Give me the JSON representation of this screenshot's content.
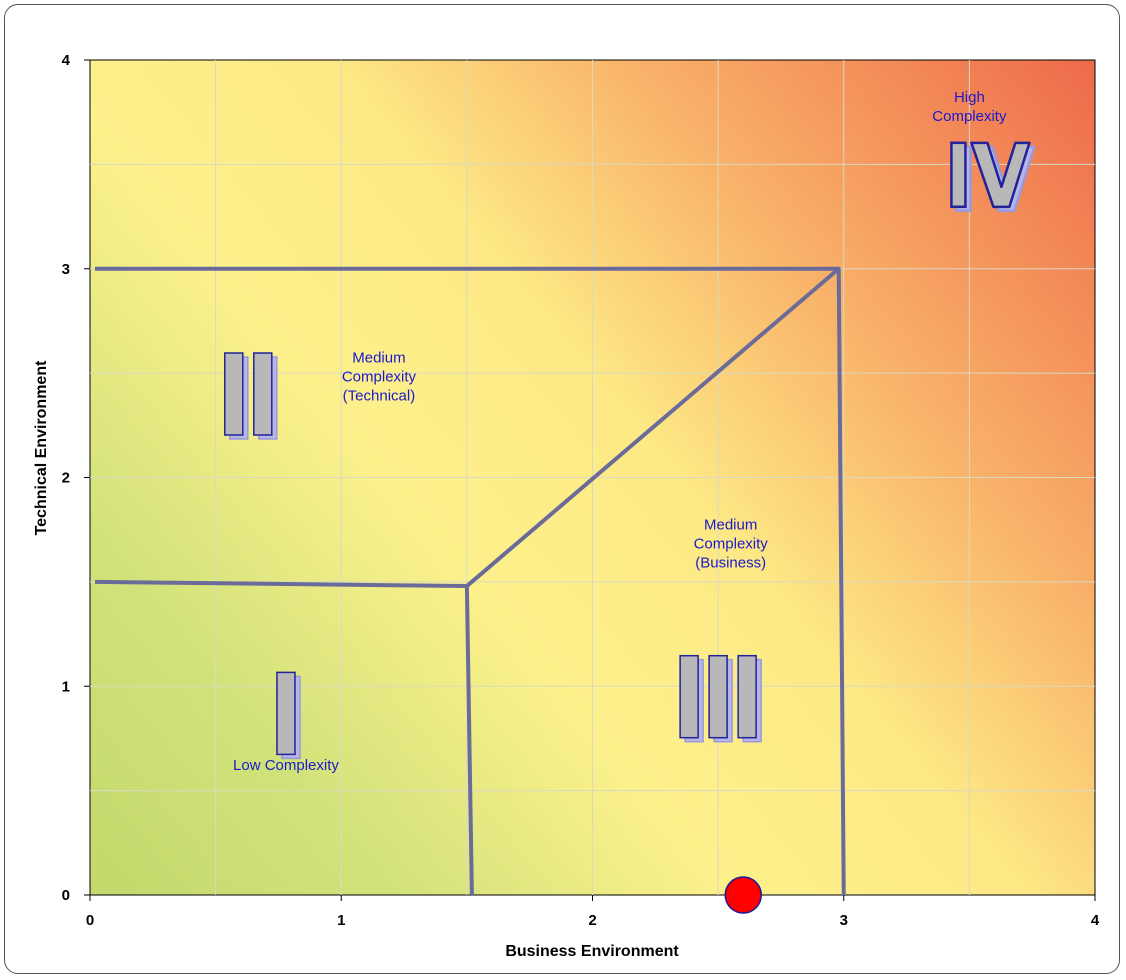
{
  "chart_data": {
    "type": "scatter",
    "title": "",
    "xlabel": "Business Environment",
    "ylabel": "Technical Environment",
    "xlim": [
      0,
      4
    ],
    "ylim": [
      0,
      4
    ],
    "x_ticks": [
      0,
      1,
      2,
      3,
      4
    ],
    "y_ticks": [
      0,
      1,
      2,
      3,
      4
    ],
    "grid": true,
    "background": "gradient: green (low) to yellow to red (high)",
    "colors": {
      "low": "#c6dd6e",
      "mid": "#fdf18c",
      "high": "#ef6d4c",
      "lines": "#6b6b9a",
      "point": "#ff0000",
      "label": "#1a1acc"
    },
    "points": [
      {
        "x": 2.6,
        "y": 0.0
      }
    ],
    "boundary_lines": [
      {
        "points": [
          [
            0.02,
            3.0
          ],
          [
            2.98,
            3.0
          ],
          [
            3.0,
            0.0
          ]
        ]
      },
      {
        "points": [
          [
            0.02,
            1.5
          ],
          [
            1.5,
            1.48
          ],
          [
            1.52,
            0.0
          ]
        ]
      },
      {
        "points": [
          [
            1.5,
            1.48
          ],
          [
            2.98,
            3.0
          ]
        ]
      }
    ],
    "regions": [
      {
        "numeral": "I",
        "label": "Low Complexity",
        "label_x": 0.78,
        "label_y": 0.6,
        "numeral_x": 0.78,
        "numeral_y": 0.87
      },
      {
        "numeral": "II",
        "label": "Medium\nComplexity\n(Technical)",
        "label_x": 1.15,
        "label_y": 2.55,
        "numeral_x": 0.63,
        "numeral_y": 2.4
      },
      {
        "numeral": "III",
        "label": "Medium\nComplexity\n(Business)",
        "label_x": 2.55,
        "label_y": 1.75,
        "numeral_x": 2.5,
        "numeral_y": 0.95
      },
      {
        "numeral": "IV",
        "label": "High\nComplexity",
        "label_x": 3.5,
        "label_y": 3.8,
        "numeral_x": 3.57,
        "numeral_y": 3.45
      }
    ]
  }
}
